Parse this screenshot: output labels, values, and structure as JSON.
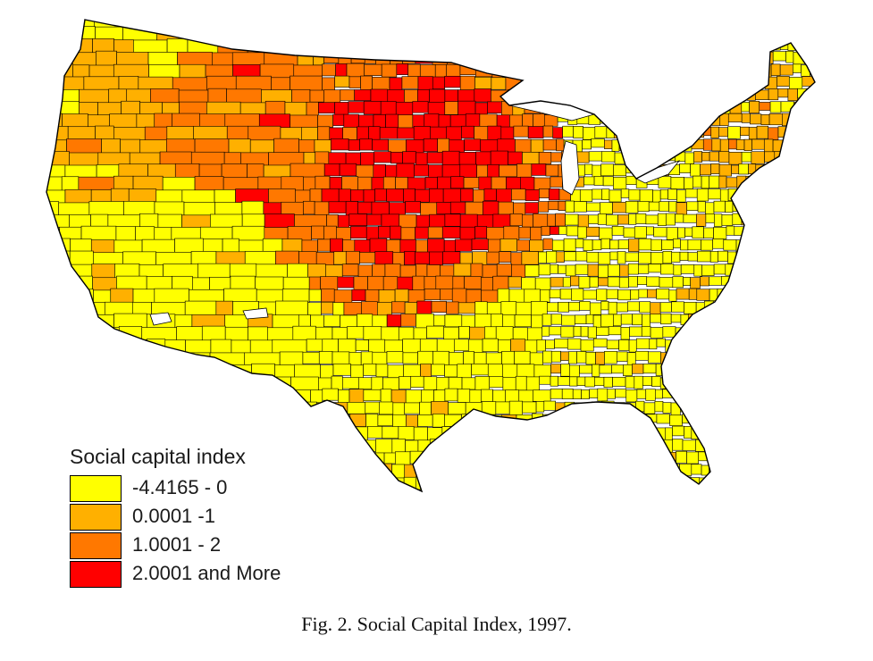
{
  "map": {
    "colors": {
      "class0": "#ffff00",
      "class1": "#ffb000",
      "class2": "#ff7800",
      "class3": "#ff0000",
      "county_border": "#000000",
      "water": "#ffffff"
    },
    "region_levels": {
      "northern_plains_core": 3,
      "upper_midwest_ring": 2,
      "mountain_north": 2,
      "pacific_northwest": 1,
      "northeast": 1,
      "south_and_southwest": 0
    }
  },
  "legend": {
    "title": "Social capital index",
    "items": [
      {
        "label": "-4.4165 - 0",
        "color": "#ffff00"
      },
      {
        "label": "0.0001 -1",
        "color": "#ffb000"
      },
      {
        "label": "1.0001 - 2",
        "color": "#ff7800"
      },
      {
        "label": "2.0001 and More",
        "color": "#ff0000"
      }
    ]
  },
  "caption": "Fig. 2.  Social Capital Index, 1997."
}
